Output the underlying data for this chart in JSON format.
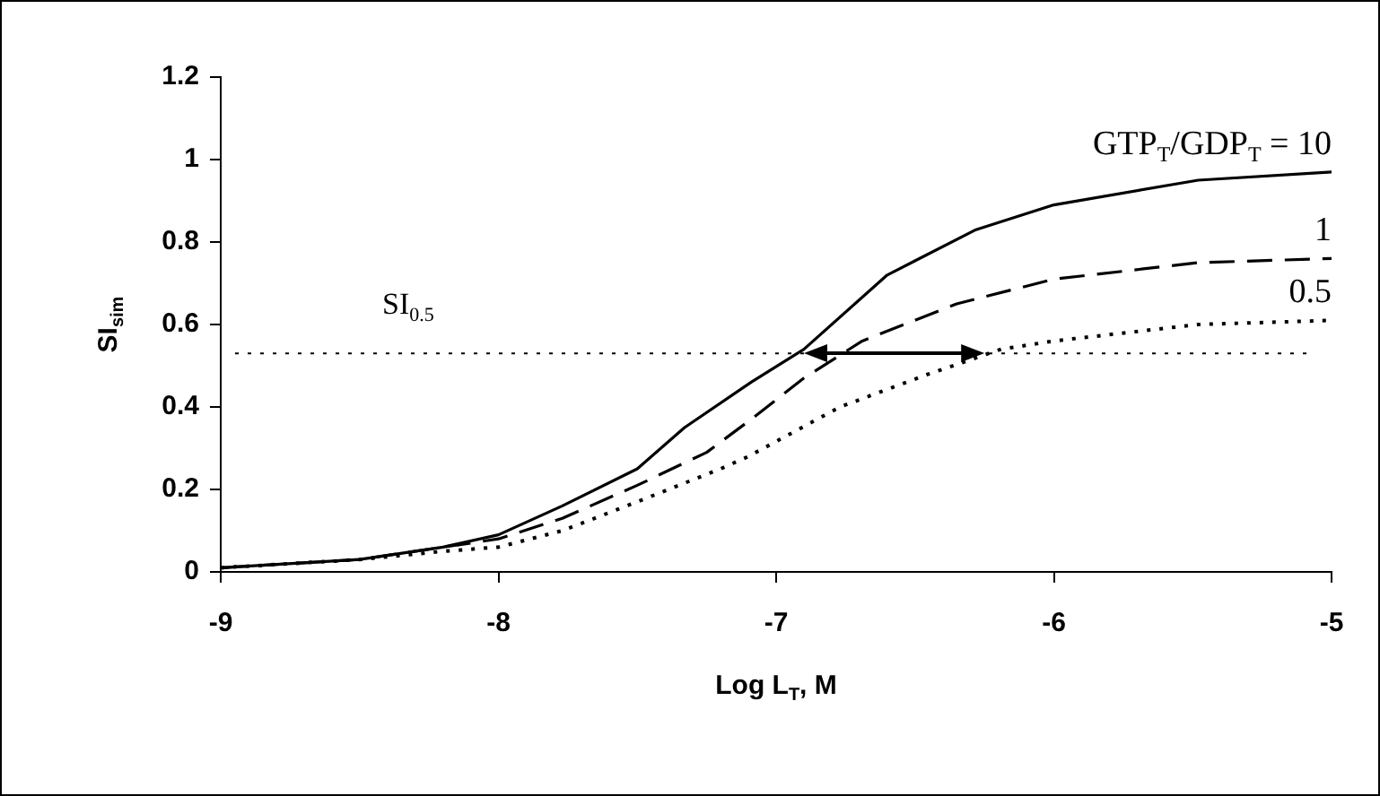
{
  "chart_data": {
    "type": "line",
    "xlabel": "Log L$_{T}$, M",
    "ylabel": "SI$_{sim}$",
    "xlim": [
      -9,
      -5
    ],
    "xticks": [
      -9,
      -8,
      -7,
      -6,
      -5
    ],
    "ylim": [
      0,
      1.2
    ],
    "yticks": [
      0,
      0.2,
      0.4,
      0.6,
      0.8,
      1,
      1.2
    ],
    "grid": false,
    "legend": false,
    "marker": "none",
    "series": [
      {
        "name": "GTP$_{T}$/GDP$_{T}$ = 10",
        "color": "#000000",
        "line_style": "solid",
        "x": [
          -9,
          -8.5,
          -8.2,
          -8,
          -7.77,
          -7.5,
          -7.33,
          -7.09,
          -6.9,
          -6.6,
          -6.28,
          -6,
          -5.48,
          -5
        ],
        "values": [
          0.01,
          0.03,
          0.06,
          0.09,
          0.16,
          0.25,
          0.35,
          0.46,
          0.54,
          0.72,
          0.83,
          0.89,
          0.95,
          0.97
        ]
      },
      {
        "name": "1",
        "color": "#000000",
        "line_style": "dashed",
        "x": [
          -9,
          -8.5,
          -8.2,
          -8,
          -7.77,
          -7.5,
          -7.25,
          -7.09,
          -6.9,
          -6.69,
          -6.35,
          -6,
          -5.48,
          -5
        ],
        "values": [
          0.01,
          0.03,
          0.06,
          0.08,
          0.13,
          0.21,
          0.29,
          0.37,
          0.47,
          0.56,
          0.65,
          0.71,
          0.75,
          0.76
        ]
      },
      {
        "name": "0.5",
        "color": "#000000",
        "line_style": "dotted",
        "x": [
          -9,
          -8.5,
          -8.2,
          -8,
          -7.77,
          -7.5,
          -7.2,
          -7.1,
          -6.77,
          -6.45,
          -6.19,
          -6,
          -5.48,
          -5
        ],
        "values": [
          0.01,
          0.03,
          0.05,
          0.06,
          0.1,
          0.17,
          0.25,
          0.28,
          0.4,
          0.48,
          0.54,
          0.56,
          0.6,
          0.61
        ]
      }
    ],
    "ref_lines": [
      {
        "axis": "y",
        "value": 0.53,
        "label": "SI$_{0.5}$",
        "line_style": "dotted",
        "color": "#000000"
      }
    ]
  }
}
